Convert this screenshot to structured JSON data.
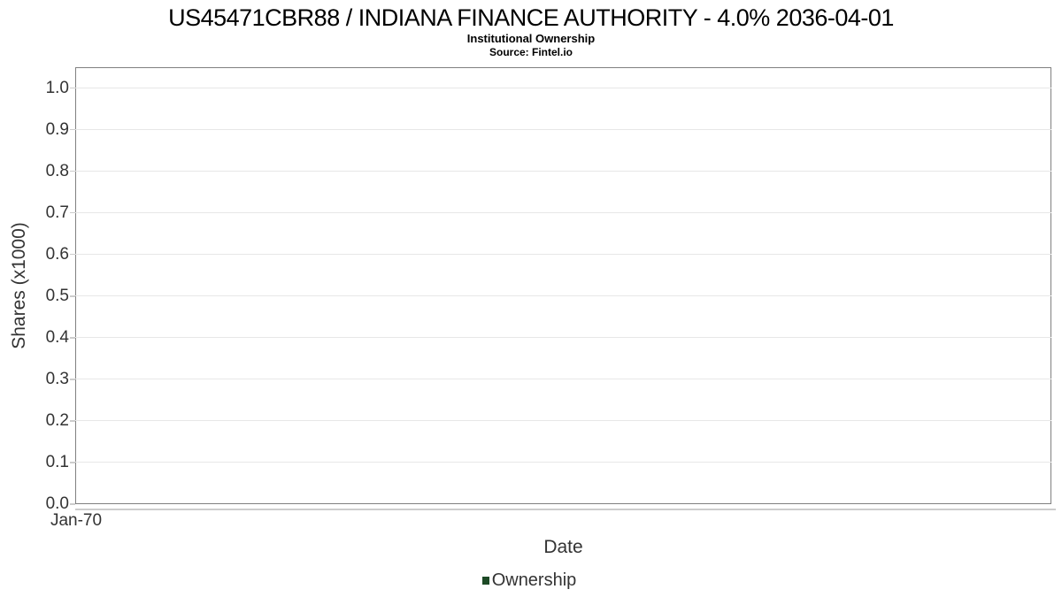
{
  "chart_data": {
    "type": "line",
    "title": "US45471CBR88 / INDIANA FINANCE AUTHORITY - 4.0% 2036-04-01",
    "subtitle": "Institutional Ownership",
    "source": "Source: Fintel.io",
    "xlabel": "Date",
    "ylabel": "Shares (x1000)",
    "ylim": [
      0,
      1.05
    ],
    "yticks": [
      0.0,
      0.1,
      0.2,
      0.3,
      0.4,
      0.5,
      0.6,
      0.7,
      0.8,
      0.9,
      1.0
    ],
    "ytick_decimals": 1,
    "xticks": [
      "Jan-70"
    ],
    "grid": true,
    "legend_position": "bottom",
    "series": [
      {
        "name": "Ownership",
        "color": "#1d4a26",
        "x": [],
        "values": []
      }
    ],
    "colors": {
      "plot_border": "#808080",
      "gridline": "#e7e7e7",
      "tick": "#cccccc",
      "axis_line": "#cccccc",
      "tick_label_text": "#333333",
      "axis_title_text": "#333333",
      "title_text": "#000000"
    }
  }
}
